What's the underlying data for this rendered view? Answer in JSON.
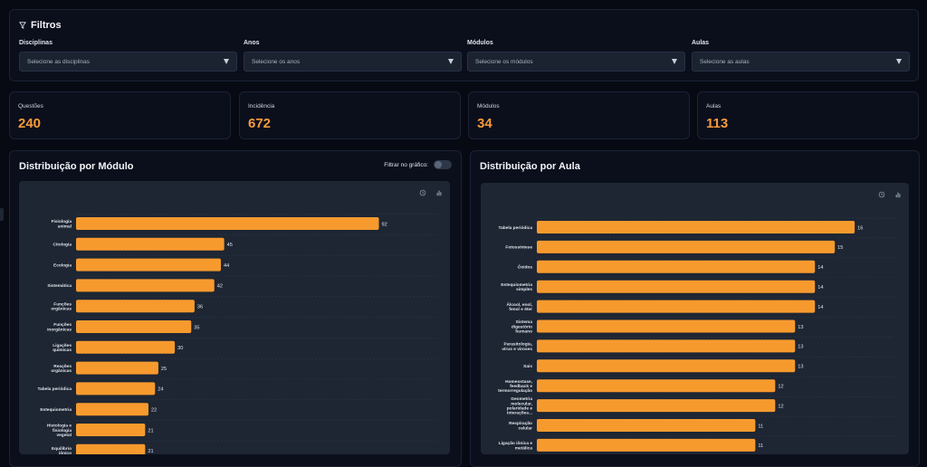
{
  "filters": {
    "title": "Filtros",
    "groups": [
      {
        "label": "Disciplinas",
        "placeholder": "Selecione as disciplinas"
      },
      {
        "label": "Anos",
        "placeholder": "Selecione os anos"
      },
      {
        "label": "Módulos",
        "placeholder": "Selecione os módulos"
      },
      {
        "label": "Aulas",
        "placeholder": "Selecione as aulas"
      }
    ]
  },
  "metrics": [
    {
      "label": "Questões",
      "value": "240"
    },
    {
      "label": "Incidência",
      "value": "672"
    },
    {
      "label": "Módulos",
      "value": "34"
    },
    {
      "label": "Aulas",
      "value": "113"
    }
  ],
  "colors": {
    "accent": "#f79a3a",
    "bar": "#f79a2e",
    "panel": "#0b0f1c",
    "chart_bg": "#1e2633"
  },
  "module_panel": {
    "title": "Distribuição por Módulo",
    "toggle_label": "Filtrar no gráfico:",
    "toggle_on": false
  },
  "aula_panel": {
    "title": "Distribuição por Aula"
  },
  "toolbar_icons": [
    "history-icon",
    "bar-chart-icon"
  ],
  "chart_data": [
    {
      "type": "bar",
      "orientation": "horizontal",
      "title": "Distribuição por Módulo",
      "categories": [
        "Fisiologia animal",
        "Citologia",
        "Ecologia",
        "Sistemática",
        "Funções orgânicas",
        "Funções inorgânicas",
        "Ligações químicas",
        "Reações orgânicas",
        "Tabela periódica",
        "Estequiometria",
        "Histologia e fisiologia vegetal",
        "Equilíbrio iônico"
      ],
      "values": [
        92,
        45,
        44,
        42,
        36,
        35,
        30,
        25,
        24,
        22,
        21,
        21
      ],
      "xlim": [
        0,
        110
      ],
      "grid": true
    },
    {
      "type": "bar",
      "orientation": "horizontal",
      "title": "Distribuição por Aula",
      "categories": [
        "Tabela periódica",
        "Fotossíntese",
        "Óxidos",
        "Estequiometria simples",
        "Álcool, enol, fenol e éter",
        "Sistema digestório humano",
        "Parasitologia, vírus e viroses",
        "Sais",
        "Homeostase, feedback e termorregulação",
        "Geometria molecular, polaridade e interações...",
        "Respiração celular",
        "Ligação iônica e metálica"
      ],
      "values": [
        16,
        15,
        14,
        14,
        14,
        13,
        13,
        13,
        12,
        12,
        11,
        11
      ],
      "xlim": [
        0,
        18
      ],
      "grid": true
    }
  ]
}
